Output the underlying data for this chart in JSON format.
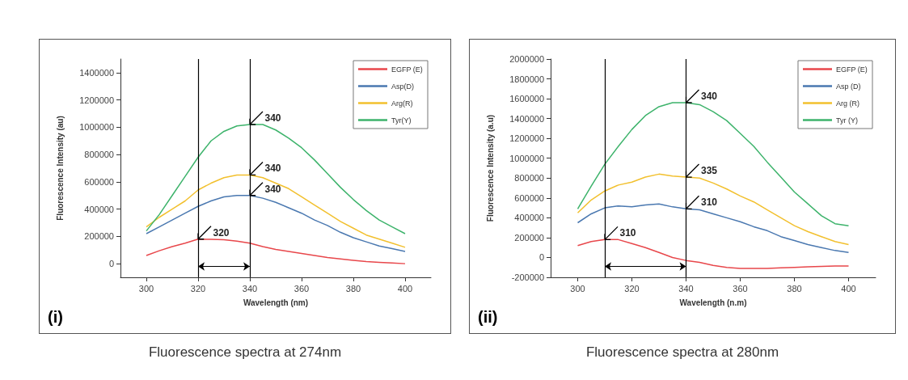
{
  "chart_data": [
    {
      "type": "line",
      "title": "Fluorescence spectra  at  274nm",
      "xlabel": "Wavelength (nm)",
      "ylabel": "Fluorescence Intensity (au)",
      "legend": "top right",
      "grid": false,
      "marker": "none",
      "line_style": "solid",
      "xlim": [
        290,
        410
      ],
      "xticks": [
        300,
        320,
        340,
        360,
        380,
        400
      ],
      "ylim": [
        -100000,
        1500000
      ],
      "yticks": [
        0,
        200000,
        400000,
        600000,
        800000,
        1000000,
        1200000,
        1400000
      ],
      "ref_lines": [
        {
          "axis": "x",
          "value": 340,
          "color": "#000000"
        },
        {
          "axis": "x",
          "value": 320,
          "color": "#000000"
        }
      ],
      "annotations": [
        "(i)",
        {
          "text": "340",
          "x": 340,
          "y": 1020000
        },
        {
          "text": "340",
          "x": 340,
          "y": 650000
        },
        {
          "text": "340",
          "x": 340,
          "y": 500000
        },
        {
          "text": "320",
          "x": 320,
          "y": 180000
        }
      ],
      "x": [
        300,
        305,
        310,
        315,
        320,
        325,
        330,
        335,
        340,
        345,
        350,
        355,
        360,
        365,
        370,
        375,
        380,
        385,
        390,
        395,
        400
      ],
      "series": [
        {
          "name": "EGFP (E)",
          "color": "#e8474b",
          "values": [
            60000,
            95000,
            125000,
            150000,
            180000,
            178000,
            175000,
            165000,
            150000,
            125000,
            105000,
            90000,
            75000,
            60000,
            45000,
            35000,
            25000,
            15000,
            10000,
            5000,
            0
          ]
        },
        {
          "name": "Asp(D)",
          "color": "#4a78b0",
          "values": [
            220000,
            270000,
            320000,
            370000,
            420000,
            460000,
            490000,
            500000,
            500000,
            480000,
            450000,
            410000,
            370000,
            320000,
            280000,
            230000,
            190000,
            160000,
            130000,
            110000,
            90000
          ]
        },
        {
          "name": "Arg(R)",
          "color": "#f2c02e",
          "values": [
            270000,
            340000,
            400000,
            460000,
            540000,
            590000,
            630000,
            650000,
            650000,
            630000,
            590000,
            550000,
            490000,
            430000,
            370000,
            310000,
            260000,
            210000,
            180000,
            150000,
            120000
          ]
        },
        {
          "name": "Tyr(Y)",
          "color": "#3db36b",
          "values": [
            240000,
            360000,
            500000,
            640000,
            780000,
            900000,
            970000,
            1010000,
            1020000,
            1020000,
            980000,
            920000,
            850000,
            760000,
            660000,
            560000,
            470000,
            390000,
            320000,
            270000,
            220000
          ]
        }
      ]
    },
    {
      "type": "line",
      "title": "Fluorescence spectra  at  280nm",
      "xlabel": "Wavelength (n.m)",
      "ylabel": "Fluorescence Intensity (a.u)",
      "legend": "top right",
      "grid": false,
      "marker": "none",
      "line_style": "solid",
      "xlim": [
        290,
        410
      ],
      "xticks": [
        300,
        320,
        340,
        360,
        380,
        400
      ],
      "ylim": [
        -200000,
        2000000
      ],
      "yticks": [
        -200000,
        0,
        200000,
        400000,
        600000,
        800000,
        1000000,
        1200000,
        1400000,
        1600000,
        1800000,
        2000000
      ],
      "ref_lines": [
        {
          "axis": "x",
          "value": 340,
          "color": "#000000"
        },
        {
          "axis": "x",
          "value": 310,
          "color": "#000000"
        }
      ],
      "annotations": [
        "(ii)",
        {
          "text": "340",
          "x": 340,
          "y": 1560000
        },
        {
          "text": "335",
          "x": 340,
          "y": 810000
        },
        {
          "text": "310",
          "x": 340,
          "y": 490000
        },
        {
          "text": "310",
          "x": 310,
          "y": 180000
        }
      ],
      "x": [
        300,
        305,
        310,
        315,
        320,
        325,
        330,
        335,
        340,
        345,
        350,
        355,
        360,
        365,
        370,
        375,
        380,
        385,
        390,
        395,
        400
      ],
      "series": [
        {
          "name": "EGFP (E)",
          "color": "#e8474b",
          "values": [
            120000,
            160000,
            180000,
            180000,
            140000,
            100000,
            50000,
            0,
            -30000,
            -50000,
            -80000,
            -100000,
            -110000,
            -110000,
            -110000,
            -105000,
            -100000,
            -95000,
            -90000,
            -85000,
            -85000
          ]
        },
        {
          "name": "Asp (D)",
          "color": "#4a78b0",
          "values": [
            350000,
            440000,
            500000,
            520000,
            510000,
            530000,
            540000,
            510000,
            490000,
            480000,
            440000,
            400000,
            360000,
            310000,
            270000,
            210000,
            170000,
            130000,
            100000,
            70000,
            50000
          ]
        },
        {
          "name": "Arg (R)",
          "color": "#f2c02e",
          "values": [
            450000,
            580000,
            670000,
            730000,
            760000,
            810000,
            840000,
            820000,
            810000,
            800000,
            750000,
            690000,
            620000,
            560000,
            480000,
            400000,
            320000,
            260000,
            210000,
            160000,
            130000
          ]
        },
        {
          "name": "Tyr (Y)",
          "color": "#3db36b",
          "values": [
            490000,
            720000,
            940000,
            1120000,
            1290000,
            1430000,
            1520000,
            1560000,
            1560000,
            1540000,
            1470000,
            1380000,
            1250000,
            1120000,
            960000,
            810000,
            660000,
            540000,
            420000,
            340000,
            320000
          ]
        }
      ]
    }
  ]
}
